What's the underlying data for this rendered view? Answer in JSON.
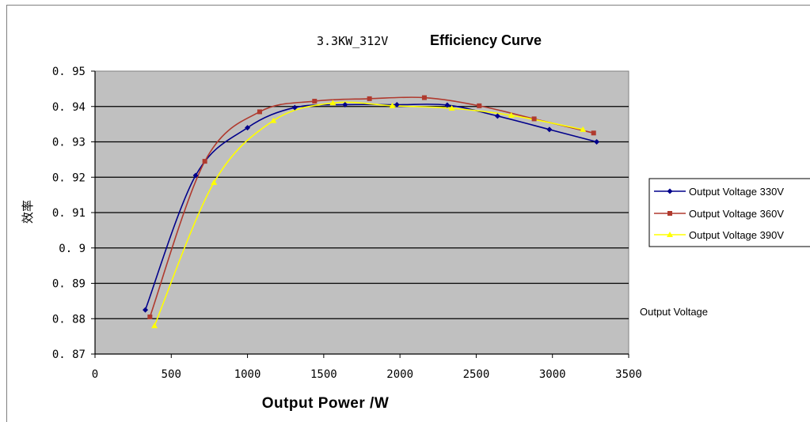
{
  "chart_data": {
    "type": "line",
    "title_prefix": "3.3KW_312V",
    "title": "Efficiency Curve",
    "xlabel": "Output Power /W",
    "ylabel": "效率",
    "xlim": [
      0,
      3500
    ],
    "ylim": [
      0.87,
      0.95
    ],
    "x_ticks": [
      "0",
      "500",
      "1000",
      "1500",
      "2000",
      "2500",
      "3000",
      "3500"
    ],
    "y_ticks": [
      "0.87",
      "0.88",
      "0.89",
      "0.9",
      "0.91",
      "0.92",
      "0.93",
      "0.94",
      "0.95"
    ],
    "grid": "horizontal",
    "plot_background": "#c0c0c0",
    "legend_position": "right",
    "series": [
      {
        "name": "Output Voltage 330V",
        "color": "#00008b",
        "marker": "diamond",
        "points": [
          [
            330,
            0.8825
          ],
          [
            660,
            0.9205
          ],
          [
            1000,
            0.934
          ],
          [
            1310,
            0.9397
          ],
          [
            1640,
            0.9405
          ],
          [
            1980,
            0.9405
          ],
          [
            2310,
            0.9404
          ],
          [
            2640,
            0.9373
          ],
          [
            2980,
            0.9335
          ],
          [
            3290,
            0.93
          ]
        ]
      },
      {
        "name": "Output Voltage 360V",
        "color": "#b03a2e",
        "marker": "square",
        "points": [
          [
            360,
            0.8805
          ],
          [
            720,
            0.9245
          ],
          [
            1080,
            0.9385
          ],
          [
            1440,
            0.9415
          ],
          [
            1800,
            0.9422
          ],
          [
            2160,
            0.9425
          ],
          [
            2520,
            0.9402
          ],
          [
            2880,
            0.9365
          ],
          [
            3270,
            0.9325
          ]
        ]
      },
      {
        "name": "Output Voltage 390V",
        "color": "#ffff00",
        "marker": "triangle",
        "points": [
          [
            390,
            0.878
          ],
          [
            780,
            0.9185
          ],
          [
            1170,
            0.936
          ],
          [
            1560,
            0.941
          ],
          [
            1950,
            0.9402
          ],
          [
            2340,
            0.9395
          ],
          [
            2730,
            0.9375
          ],
          [
            3200,
            0.9335
          ]
        ]
      }
    ],
    "annotation": "Output Voltage"
  }
}
